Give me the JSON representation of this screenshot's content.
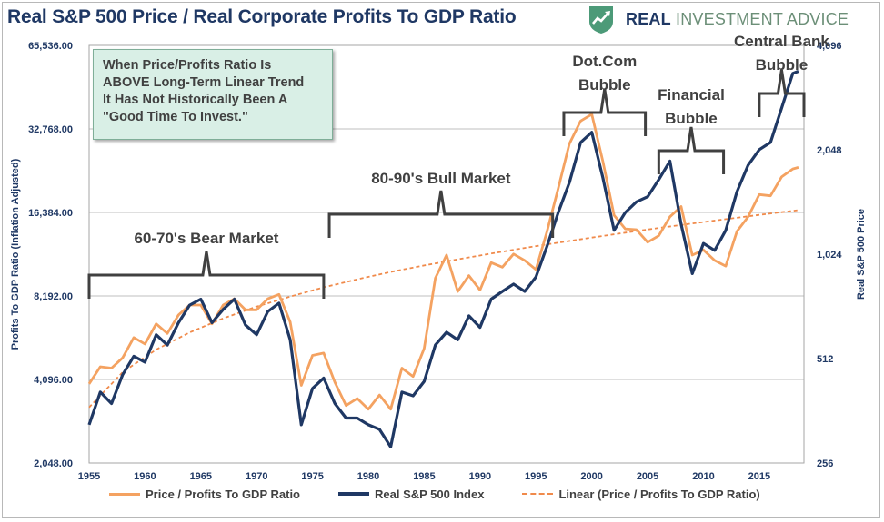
{
  "header": {
    "title": "Real S&P 500 Price / Real Corporate Profits To GDP Ratio"
  },
  "brand": {
    "name_bold": "REAL",
    "name_light": "INVESTMENT ADVICE",
    "logo_icon": "trend-arrow-shield-icon",
    "logo_color": "#4c9a78"
  },
  "annotation_box": {
    "lines": [
      "When Price/Profits Ratio Is",
      "ABOVE Long-Term Linear Trend",
      "It Has Not Historically Been A",
      "\"Good Time To Invest.\""
    ]
  },
  "colors": {
    "ratio": "#f4a261",
    "sp500": "#1f3864",
    "linear": "#f08a4b",
    "bracket": "#404040",
    "grid": "#bfbfbf",
    "axis_text": "#1f3864"
  },
  "chart_data": {
    "type": "line",
    "title": "Real S&P 500 Price / Real Corporate Profits To GDP Ratio",
    "x_ticks": [
      "1955",
      "1960",
      "1965",
      "1970",
      "1975",
      "1980",
      "1985",
      "1990",
      "1995",
      "2000",
      "2005",
      "2010",
      "2015"
    ],
    "y_left": {
      "label": "Profits To GDP Ratio (Inflation Adjusted)",
      "scale": "log2",
      "ticks": [
        "2,048.00",
        "4,096.00",
        "8,192.00",
        "16,384.00",
        "32,768.00",
        "65,536.00"
      ],
      "range": [
        2048,
        65536
      ]
    },
    "y_right": {
      "label": "Real S&P 500 Price",
      "scale": "log2",
      "ticks": [
        "256",
        "512",
        "1,024",
        "2,048",
        "4,096"
      ],
      "range": [
        256,
        4096
      ]
    },
    "grid": "horizontal",
    "legend_position": "bottom",
    "legend": [
      "Price / Profits To GDP Ratio",
      "Real S&P 500 Index",
      "Linear (Price / Profits To GDP Ratio)"
    ],
    "series": [
      {
        "name": "Price / Profits To GDP Ratio",
        "axis": "left",
        "x": [
          1955,
          1956,
          1957,
          1958,
          1959,
          1960,
          1961,
          1962,
          1963,
          1964,
          1965,
          1966,
          1967,
          1968,
          1969,
          1970,
          1971,
          1972,
          1973,
          1974,
          1975,
          1976,
          1977,
          1978,
          1979,
          1980,
          1981,
          1982,
          1983,
          1984,
          1985,
          1986,
          1987,
          1988,
          1989,
          1990,
          1991,
          1992,
          1993,
          1994,
          1995,
          1996,
          1997,
          1998,
          1999,
          2000,
          2001,
          2002,
          2003,
          2004,
          2005,
          2006,
          2007,
          2008,
          2009,
          2010,
          2011,
          2012,
          2013,
          2014,
          2015,
          2016,
          2017,
          2018,
          2018.5
        ],
        "values": [
          3950,
          4550,
          4500,
          4900,
          5800,
          5500,
          6500,
          6000,
          7000,
          7600,
          7600,
          6500,
          7600,
          8000,
          7300,
          7300,
          8000,
          8300,
          6600,
          3900,
          5000,
          5100,
          4000,
          3300,
          3500,
          3200,
          3600,
          3200,
          4500,
          4200,
          5300,
          9500,
          11500,
          8500,
          9700,
          8600,
          10800,
          10400,
          11600,
          11000,
          10200,
          14000,
          20000,
          29000,
          35000,
          37000,
          25000,
          16000,
          14300,
          14200,
          12800,
          13500,
          15800,
          17200,
          11500,
          12000,
          11000,
          10500,
          14000,
          15800,
          19000,
          18800,
          22000,
          23500,
          23800
        ]
      },
      {
        "name": "Real S&P 500 Index",
        "axis": "right",
        "x": [
          1955,
          1956,
          1957,
          1958,
          1959,
          1960,
          1961,
          1962,
          1963,
          1964,
          1965,
          1966,
          1967,
          1968,
          1969,
          1970,
          1971,
          1972,
          1973,
          1974,
          1975,
          1976,
          1977,
          1978,
          1979,
          1980,
          1981,
          1982,
          1983,
          1984,
          1985,
          1986,
          1987,
          1988,
          1989,
          1990,
          1991,
          1992,
          1993,
          1994,
          1995,
          1996,
          1997,
          1998,
          1999,
          2000,
          2001,
          2002,
          2003,
          2004,
          2005,
          2006,
          2007,
          2008,
          2009,
          2010,
          2011,
          2012,
          2013,
          2014,
          2015,
          2016,
          2017,
          2018,
          2018.5
        ],
        "values": [
          330,
          410,
          380,
          460,
          520,
          500,
          600,
          560,
          650,
          730,
          760,
          650,
          710,
          760,
          640,
          600,
          700,
          740,
          580,
          330,
          420,
          450,
          380,
          345,
          345,
          330,
          320,
          285,
          410,
          400,
          440,
          560,
          610,
          580,
          680,
          630,
          760,
          800,
          840,
          800,
          880,
          1080,
          1350,
          1650,
          2150,
          2300,
          1700,
          1200,
          1350,
          1450,
          1500,
          1680,
          1900,
          1250,
          900,
          1100,
          1050,
          1200,
          1550,
          1850,
          2050,
          2150,
          2700,
          3400,
          3450
        ]
      },
      {
        "name": "Linear (Price / Profits To GDP Ratio)",
        "axis": "left",
        "x": [
          1955,
          1958,
          1961,
          1964,
          1967,
          1970,
          1973,
          1976,
          1979,
          1982,
          1985,
          1988,
          1991,
          1994,
          1997,
          2000,
          2003,
          2006,
          2009,
          2012,
          2015,
          2018.5
        ],
        "values": [
          3250,
          4350,
          5250,
          6050,
          6800,
          7500,
          8150,
          8800,
          9400,
          10000,
          10550,
          11100,
          11650,
          12200,
          12750,
          13300,
          13850,
          14400,
          14950,
          15500,
          16050,
          16700
        ]
      }
    ],
    "annotations": [
      {
        "label": "60-70's Bear Market",
        "x_start": 1955,
        "x_end": 1976
      },
      {
        "label": "80-90's Bull Market",
        "x_start": 1976.5,
        "x_end": 1996.5
      },
      {
        "label": "Dot.Com Bubble",
        "x_start": 1997.5,
        "x_end": 2004.8
      },
      {
        "label": "Financial Bubble",
        "x_start": 2006,
        "x_end": 2011.8
      },
      {
        "label": "Central Bank Bubble",
        "x_start": 2015,
        "x_end": 2019
      }
    ]
  }
}
